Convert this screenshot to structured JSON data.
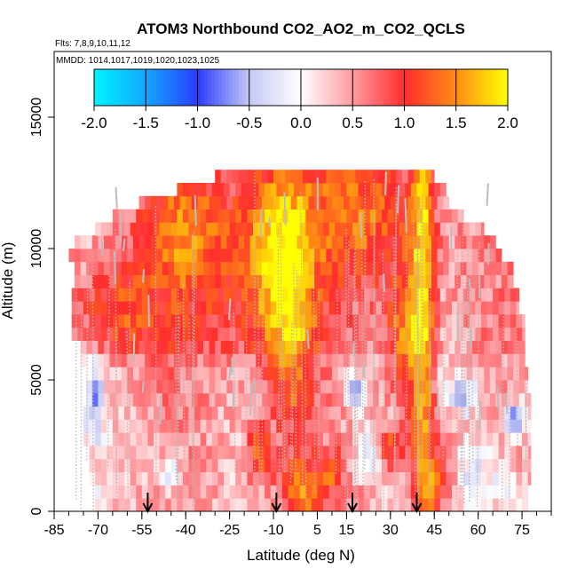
{
  "chart_data": {
    "type": "heatmap",
    "title": "ATOM3 Northbound CO2_AO2_m_CO2_QCLS",
    "subtitle_flights": "Flts: 7,8,9,10,11,12",
    "subtitle_dates": "MMDD: 1014,1017,1019,1020,1023,1025",
    "xlabel": "Latitude (deg N)",
    "ylabel": "Altitude (m)",
    "xlim": [
      -85,
      85
    ],
    "ylim": [
      0,
      17500
    ],
    "x_ticks": [
      -85,
      -70,
      -55,
      -40,
      -25,
      -10,
      5,
      15,
      30,
      45,
      60,
      75
    ],
    "x_minor_step": 5,
    "y_ticks": [
      0,
      5000,
      10000,
      15000
    ],
    "colorbar": {
      "ticks": [
        "-2.0",
        "-1.5",
        "-1.0",
        "-0.5",
        "0.0",
        "0.5",
        "1.0",
        "1.5",
        "2.0"
      ],
      "range": [
        -2.0,
        2.0
      ],
      "colors": {
        "n2": "#00f5ff",
        "n1_5": "#14a6ff",
        "n1": "#2a3cff",
        "n0_5": "#c4c8f4",
        "zero": "#ffffff",
        "p0_5": "#ff9ba0",
        "p1": "#ff2d2d",
        "p1_5": "#ff8c14",
        "p2": "#ffff00"
      }
    },
    "profile_arrows_lat": [
      -53,
      -9,
      17,
      39
    ],
    "altitude_bands_m": [
      500,
      1000,
      1500,
      2000,
      2500,
      3000,
      3500,
      4000,
      4500,
      5000,
      5500,
      6000,
      6500,
      7000,
      7500,
      8000,
      8500,
      9000,
      9500,
      10000,
      10500,
      11000,
      11500,
      12000,
      12500,
      13000
    ],
    "lat_extent_by_band": [
      [
        -71,
        77
      ],
      [
        -71,
        77
      ],
      [
        -73,
        78
      ],
      [
        -73,
        78
      ],
      [
        -73,
        78
      ],
      [
        -75,
        78
      ],
      [
        -75,
        78
      ],
      [
        -75,
        78
      ],
      [
        -74,
        78
      ],
      [
        -74,
        77
      ],
      [
        -74,
        77
      ],
      [
        -76,
        76
      ],
      [
        -76,
        76
      ],
      [
        -79,
        76
      ],
      [
        -79,
        76
      ],
      [
        -79,
        74
      ],
      [
        -79,
        74
      ],
      [
        -78,
        72
      ],
      [
        -78,
        72
      ],
      [
        -80,
        68
      ],
      [
        -78,
        66
      ],
      [
        -71,
        62
      ],
      [
        -65,
        55
      ],
      [
        -56,
        50
      ],
      [
        -43,
        49
      ],
      [
        -30,
        45
      ]
    ],
    "anomaly_features": [
      {
        "lat": -38,
        "alt": 9000,
        "value": 0.4,
        "w_lat": 28,
        "w_alt": 4000
      },
      {
        "lat": -10,
        "alt": 10000,
        "value": 1.2,
        "w_lat": 12,
        "w_alt": 4000
      },
      {
        "lat": -3,
        "alt": 6500,
        "value": 0.9,
        "w_lat": 8,
        "w_alt": 5000
      },
      {
        "lat": 41,
        "alt": 7000,
        "value": 1.4,
        "w_lat": 4,
        "w_alt": 11000
      },
      {
        "lat": 35,
        "alt": 7000,
        "value": 1.0,
        "w_lat": 6,
        "w_alt": 2500
      },
      {
        "lat": 20,
        "alt": 11500,
        "value": 0.8,
        "w_lat": 22,
        "w_alt": 2500
      },
      {
        "lat": -40,
        "alt": 11000,
        "value": 0.6,
        "w_lat": 14,
        "w_alt": 2200
      },
      {
        "lat": -65,
        "alt": 7800,
        "value": 0.7,
        "w_lat": 12,
        "w_alt": 1500
      },
      {
        "lat": 18,
        "alt": 4800,
        "value": -1.2,
        "w_lat": 3,
        "w_alt": 700
      },
      {
        "lat": 22,
        "alt": 2400,
        "value": -0.9,
        "w_lat": 4,
        "w_alt": 800
      },
      {
        "lat": 73,
        "alt": 3800,
        "value": -1.3,
        "w_lat": 4,
        "w_alt": 600
      },
      {
        "lat": 55,
        "alt": 4700,
        "value": -0.8,
        "w_lat": 5,
        "w_alt": 700
      },
      {
        "lat": -71,
        "alt": 4500,
        "value": -0.9,
        "w_lat": 3,
        "w_alt": 1500
      },
      {
        "lat": -46,
        "alt": 1800,
        "value": -0.7,
        "w_lat": 3,
        "w_alt": 600
      },
      {
        "lat": 60,
        "alt": 1600,
        "value": -0.6,
        "w_lat": 10,
        "w_alt": 1200
      },
      {
        "lat": 74,
        "alt": 700,
        "value": -0.5,
        "w_lat": 6,
        "w_alt": 800
      },
      {
        "lat": -75,
        "alt": 700,
        "value": -0.6,
        "w_lat": 4,
        "w_alt": 800
      },
      {
        "lat": -15,
        "alt": 2500,
        "value": 1.0,
        "w_lat": 4,
        "w_alt": 1200
      },
      {
        "lat": 47,
        "alt": 1500,
        "value": 0.9,
        "w_lat": 6,
        "w_alt": 1500
      },
      {
        "lat": 0,
        "alt": 1000,
        "value": 0.9,
        "w_lat": 8,
        "w_alt": 1200
      },
      {
        "lat": 10,
        "alt": 1800,
        "value": 0.8,
        "w_lat": 4,
        "w_alt": 800
      },
      {
        "lat": 30,
        "alt": 2700,
        "value": 0.9,
        "w_lat": 5,
        "w_alt": 800
      }
    ],
    "grid": false,
    "legend": "colorbar inside top"
  }
}
